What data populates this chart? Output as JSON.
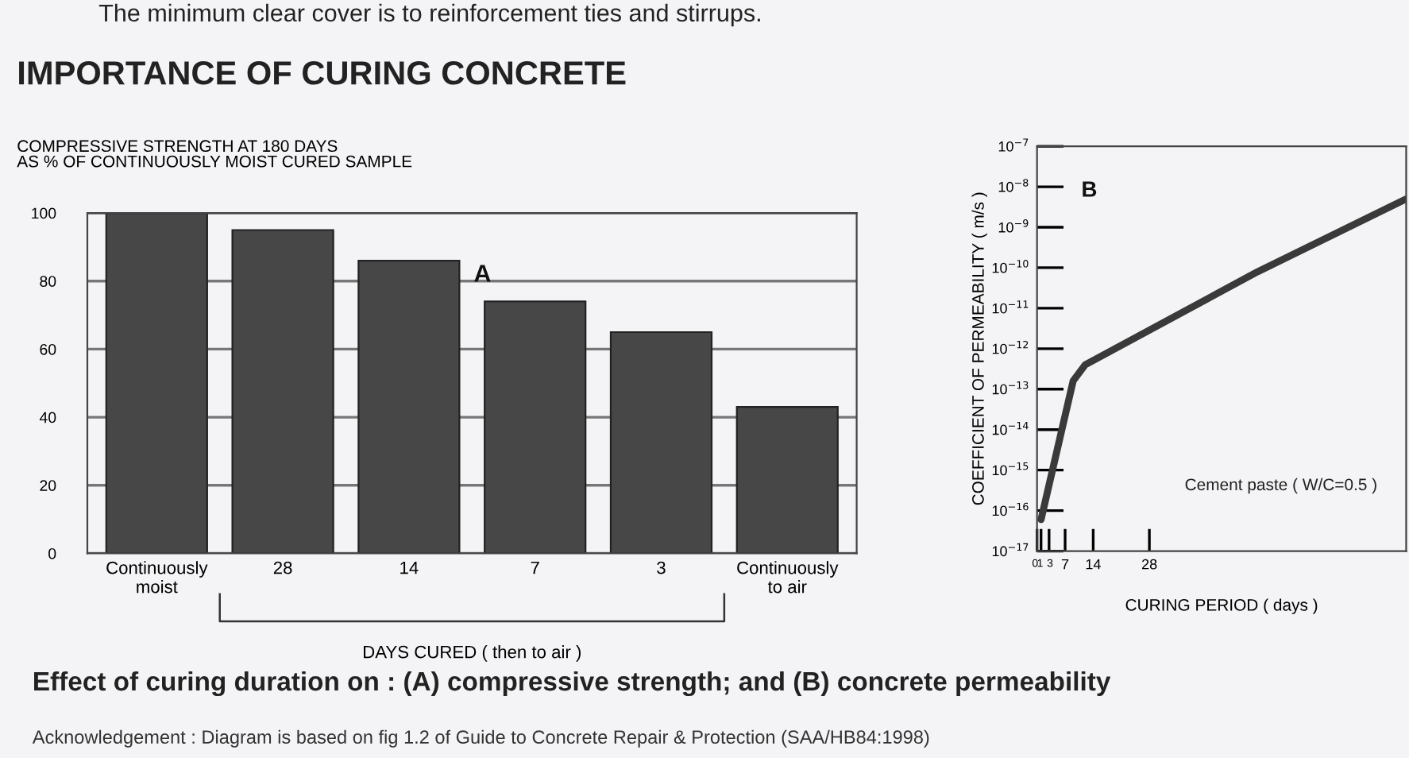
{
  "chart_data": [
    {
      "type": "bar",
      "title": "IMPORTANCE OF CURING CONCRETE",
      "ylabel": "COMPRESSIVE STRENGTH AT 180 DAYS\nAS % OF CONTINUOUSLY MOIST CURED SAMPLE",
      "xlabel": "DAYS CURED ( then to air )",
      "categories": [
        "Continuously\nmoist",
        "28",
        "14",
        "7",
        "3",
        "Continuously\nto air"
      ],
      "values": [
        100,
        95,
        86,
        74,
        65,
        43
      ],
      "color": "#474747",
      "ylim": [
        0,
        100
      ],
      "yticks": [
        0,
        20,
        40,
        60,
        80,
        100
      ],
      "grid": "y",
      "annotations": [
        "A",
        "The minimum clear cover is to reinforcement ties and stirrups.",
        "Effect of curing duration on : (A) compressive strength; and (B) concrete permeability",
        "Acknowledgement : Diagram is based on fig 1.2 of Guide to Concrete Repair & Protection (SAA/HB84:1998)"
      ]
    },
    {
      "type": "line",
      "log": "y",
      "xlabel": "CURING PERIOD ( days )",
      "ylabel": "COEFFICIENT OF PERMEABILITY ( m/s )",
      "x": [
        1,
        9,
        12,
        55,
        92
      ],
      "series": [
        {
          "color": "#3a3a3a",
          "values": [
            6e-17,
            1.6e-13,
            4e-13,
            8e-11,
            5e-09
          ]
        }
      ],
      "xlim": [
        0,
        92
      ],
      "xticks": [
        0,
        1,
        3,
        7,
        14,
        28
      ],
      "ylim": [
        1e-17,
        1e-07
      ],
      "yticks": [
        {
          "value": 1e-17,
          "label": "10$^{−17}$"
        },
        {
          "value": 1e-16,
          "label": "10$^{−16}$"
        },
        {
          "value": 1e-15,
          "label": "10$^{−15}$"
        },
        {
          "value": 1e-14,
          "label": "10$^{−14}$"
        },
        {
          "value": 1e-13,
          "label": "10$^{−13}$"
        },
        {
          "value": 1e-12,
          "label": "10$^{−12}$"
        },
        {
          "value": 1e-11,
          "label": "10$^{−11}$"
        },
        {
          "value": 1e-10,
          "label": "10$^{−10}$"
        },
        {
          "value": 1e-09,
          "label": "10$^{−9}$"
        },
        {
          "value": 1e-08,
          "label": "10$^{−8}$"
        },
        {
          "value": 1e-07,
          "label": "10$^{−7}$"
        }
      ],
      "grid": false,
      "line_style": "solid",
      "marker": "none",
      "annotations": [
        "B",
        "Cement paste ( W/C=0.5 )"
      ]
    }
  ]
}
